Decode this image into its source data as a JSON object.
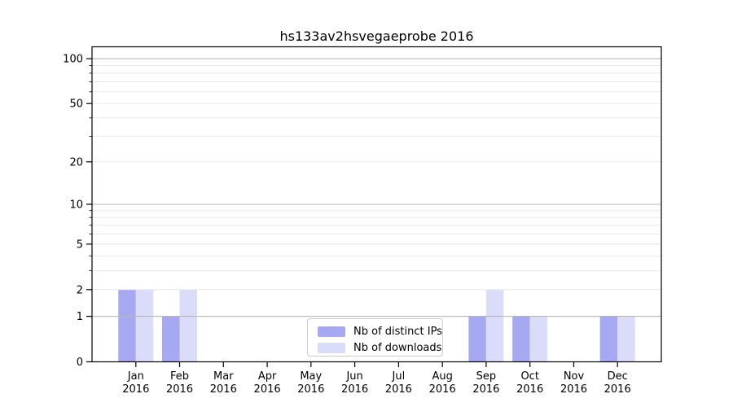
{
  "chart_data": {
    "type": "bar",
    "title": "hs133av2hsvegaeprobe 2016",
    "x_axis": {
      "months": [
        "Jan",
        "Feb",
        "Mar",
        "Apr",
        "May",
        "Jun",
        "Jul",
        "Aug",
        "Sep",
        "Oct",
        "Nov",
        "Dec"
      ],
      "year": "2016"
    },
    "y_axis": {
      "scale": "log10(1+y)",
      "tick_values": [
        0,
        1,
        2,
        5,
        10,
        20,
        50,
        100
      ],
      "strong_grid_values": [
        1,
        10,
        100
      ],
      "light_grid_values": [
        2,
        3,
        4,
        5,
        6,
        7,
        8,
        9,
        20,
        30,
        40,
        50,
        60,
        70,
        80,
        90
      ],
      "minor_tick_values": [
        3,
        4,
        6,
        7,
        8,
        9,
        30,
        40,
        60,
        70,
        80,
        90
      ],
      "ylim": [
        0,
        120
      ]
    },
    "series": [
      {
        "name": "Nb of distinct IPs",
        "color": "#a6a8f2",
        "values": [
          2,
          1,
          0,
          0,
          0,
          0,
          0,
          0,
          1,
          1,
          0,
          1
        ]
      },
      {
        "name": "Nb of downloads",
        "color": "#dadcf9",
        "values": [
          2,
          2,
          0,
          0,
          0,
          0,
          0,
          0,
          2,
          1,
          0,
          1
        ]
      }
    ],
    "legend_position": "lower center",
    "grid": "on"
  },
  "colors": {
    "background": "#ffffff",
    "spine": "#000000",
    "grid_strong": "#b8b8b8",
    "grid_light": "#e8e8e8",
    "text": "#000000",
    "legend_border": "#cccccc"
  }
}
